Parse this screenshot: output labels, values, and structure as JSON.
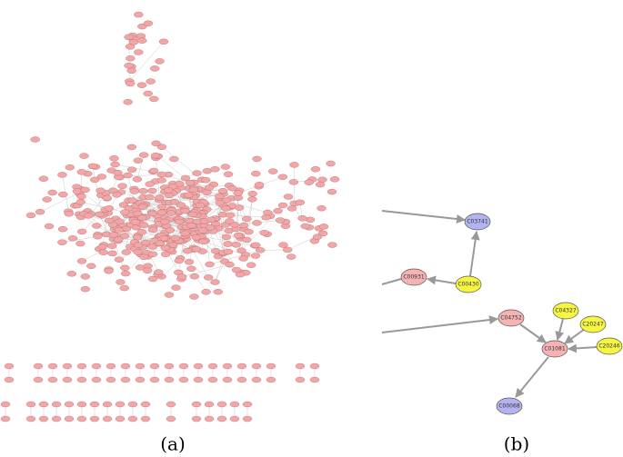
{
  "panels": [
    {
      "caption": "(a)"
    },
    {
      "caption": "(b)",
      "nodes": [
        {
          "label": "C03741"
        },
        {
          "label": "C00931"
        },
        {
          "label": "C00430"
        },
        {
          "label": "C04752"
        },
        {
          "label": "C04327"
        },
        {
          "label": "C20247"
        },
        {
          "label": "C01081"
        },
        {
          "label": "C20246"
        },
        {
          "label": "C00068"
        }
      ]
    }
  ]
}
